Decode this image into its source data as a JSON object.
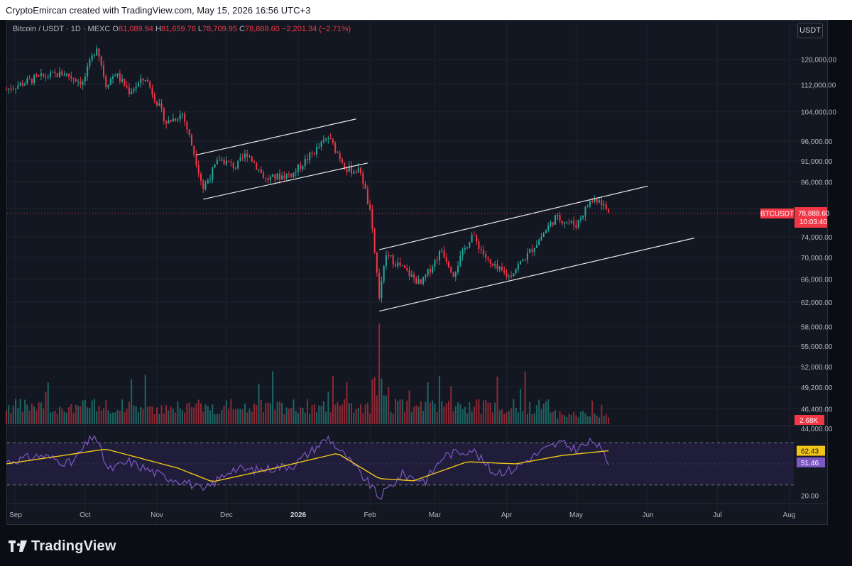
{
  "header": {
    "attribution": "CryptoEmircan created with TradingView.com, May 15, 2026 16:56 UTC+3"
  },
  "legend": {
    "symbol": "Bitcoin / USDT · 1D · MEXC",
    "o_label": "O",
    "o_value": "81,089.94",
    "h_label": "H",
    "h_value": "81,659.76",
    "l_label": "L",
    "l_value": "78,709.95",
    "c_label": "C",
    "c_value": "78,888.60",
    "change": "−2,201.34 (−2.71%)"
  },
  "currency_button": "USDT",
  "footer": {
    "brand": "TradingView",
    "logo_icon": "tradingview-logo-icon"
  },
  "colors": {
    "bull": "#26a69a",
    "bear": "#f23645",
    "rsi": "#7e57c2",
    "rsi_ma": "#f0c419",
    "rsi_band": "#1f1d3a",
    "grid": "#1e222d",
    "channel": "#e8e8e8"
  },
  "chart_data": {
    "type": "candlestick",
    "price_axis": {
      "scale": "log",
      "range": [
        44500,
        128000
      ],
      "ticks": [
        "120,000.00",
        "112,000.00",
        "104,000.00",
        "96,000.00",
        "91,000.00",
        "86,000.00",
        "80,000.00",
        "74,000.00",
        "70,000.00",
        "66,000.00",
        "62,000.00",
        "58,000.00",
        "55,000.00",
        "52,000.00",
        "49,200.00",
        "46,400.00",
        "44,000.00"
      ]
    },
    "time_axis": {
      "range": [
        "2025-08-28",
        "2026-08-03"
      ],
      "ticks": [
        {
          "date": "2025-09-01",
          "label": "Sep"
        },
        {
          "date": "2025-10-01",
          "label": "Oct"
        },
        {
          "date": "2025-11-01",
          "label": "Nov"
        },
        {
          "date": "2025-12-01",
          "label": "Dec"
        },
        {
          "date": "2026-01-01",
          "label": "2026"
        },
        {
          "date": "2026-02-01",
          "label": "Feb"
        },
        {
          "date": "2026-03-01",
          "label": "Mar"
        },
        {
          "date": "2026-04-01",
          "label": "Apr"
        },
        {
          "date": "2026-05-01",
          "label": "May"
        },
        {
          "date": "2026-06-01",
          "label": "Jun"
        },
        {
          "date": "2026-07-01",
          "label": "Jul"
        },
        {
          "date": "2026-08-01",
          "label": "Aug"
        }
      ]
    },
    "price_path": [
      {
        "date": "2025-08-28",
        "price": 110500
      },
      {
        "date": "2025-09-10",
        "price": 114000
      },
      {
        "date": "2025-09-22",
        "price": 115500
      },
      {
        "date": "2025-09-30",
        "price": 112500
      },
      {
        "date": "2025-10-06",
        "price": 124500
      },
      {
        "date": "2025-10-10",
        "price": 112000
      },
      {
        "date": "2025-10-14",
        "price": 115500
      },
      {
        "date": "2025-10-20",
        "price": 110000
      },
      {
        "date": "2025-10-27",
        "price": 114000
      },
      {
        "date": "2025-11-05",
        "price": 101000
      },
      {
        "date": "2025-11-12",
        "price": 103500
      },
      {
        "date": "2025-11-17",
        "price": 93000
      },
      {
        "date": "2025-11-21",
        "price": 84500
      },
      {
        "date": "2025-11-28",
        "price": 91500
      },
      {
        "date": "2025-12-05",
        "price": 89500
      },
      {
        "date": "2025-12-10",
        "price": 93000
      },
      {
        "date": "2025-12-18",
        "price": 86500
      },
      {
        "date": "2025-12-30",
        "price": 88000
      },
      {
        "date": "2026-01-14",
        "price": 97000
      },
      {
        "date": "2026-01-22",
        "price": 89000
      },
      {
        "date": "2026-01-28",
        "price": 88500
      },
      {
        "date": "2026-02-01",
        "price": 79000
      },
      {
        "date": "2026-02-05",
        "price": 63000
      },
      {
        "date": "2026-02-08",
        "price": 70500
      },
      {
        "date": "2026-02-15",
        "price": 68000
      },
      {
        "date": "2026-02-23",
        "price": 65000
      },
      {
        "date": "2026-03-04",
        "price": 71500
      },
      {
        "date": "2026-03-09",
        "price": 67000
      },
      {
        "date": "2026-03-17",
        "price": 74500
      },
      {
        "date": "2026-03-25",
        "price": 68500
      },
      {
        "date": "2026-04-02",
        "price": 66500
      },
      {
        "date": "2026-04-10",
        "price": 70500
      },
      {
        "date": "2026-04-15",
        "price": 73500
      },
      {
        "date": "2026-04-22",
        "price": 78000
      },
      {
        "date": "2026-05-01",
        "price": 76500
      },
      {
        "date": "2026-05-07",
        "price": 81500
      },
      {
        "date": "2026-05-11",
        "price": 82200
      },
      {
        "date": "2026-05-15",
        "price": 78888
      }
    ],
    "channels": [
      {
        "name": "channel-1-upper",
        "start": {
          "date": "2025-11-18",
          "price": 92500
        },
        "end": {
          "date": "2026-01-26",
          "price": 102000
        }
      },
      {
        "name": "channel-1-lower",
        "start": {
          "date": "2025-11-21",
          "price": 82000
        },
        "end": {
          "date": "2026-01-31",
          "price": 90500
        }
      },
      {
        "name": "channel-2-upper",
        "start": {
          "date": "2026-02-05",
          "price": 71500
        },
        "end": {
          "date": "2026-06-01",
          "price": 85000
        }
      },
      {
        "name": "channel-2-lower",
        "start": {
          "date": "2026-02-05",
          "price": 60500
        },
        "end": {
          "date": "2026-06-21",
          "price": 73800
        }
      }
    ],
    "last_price": {
      "symbol": "BTCUSDT",
      "value": "78,888.60",
      "countdown": "10:03:40"
    },
    "volume": {
      "last_label": "2.68K",
      "spike_date": "2026-02-05"
    },
    "rsi": {
      "upper_band": 70,
      "lower_band": 30,
      "range": [
        15,
        85
      ],
      "value": 51.46,
      "value_label": "51.46",
      "ma_value": 62.43,
      "ma_label": "62.43",
      "tick": "20.00",
      "path": [
        {
          "date": "2025-08-28",
          "rsi": 52
        },
        {
          "date": "2025-09-12",
          "rsi": 58
        },
        {
          "date": "2025-09-25",
          "rsi": 50
        },
        {
          "date": "2025-10-05",
          "rsi": 78
        },
        {
          "date": "2025-10-11",
          "rsi": 44
        },
        {
          "date": "2025-10-20",
          "rsi": 52
        },
        {
          "date": "2025-11-04",
          "rsi": 38
        },
        {
          "date": "2025-11-14",
          "rsi": 33
        },
        {
          "date": "2025-11-21",
          "rsi": 24
        },
        {
          "date": "2025-12-03",
          "rsi": 45
        },
        {
          "date": "2025-12-15",
          "rsi": 44
        },
        {
          "date": "2025-12-30",
          "rsi": 49
        },
        {
          "date": "2026-01-14",
          "rsi": 75
        },
        {
          "date": "2026-01-25",
          "rsi": 48
        },
        {
          "date": "2026-02-01",
          "rsi": 30
        },
        {
          "date": "2026-02-05",
          "rsi": 18
        },
        {
          "date": "2026-02-15",
          "rsi": 40
        },
        {
          "date": "2026-02-25",
          "rsi": 34
        },
        {
          "date": "2026-03-05",
          "rsi": 58
        },
        {
          "date": "2026-03-17",
          "rsi": 64
        },
        {
          "date": "2026-03-26",
          "rsi": 42
        },
        {
          "date": "2026-04-03",
          "rsi": 44
        },
        {
          "date": "2026-04-16",
          "rsi": 62
        },
        {
          "date": "2026-04-24",
          "rsi": 70
        },
        {
          "date": "2026-05-01",
          "rsi": 64
        },
        {
          "date": "2026-05-09",
          "rsi": 72
        },
        {
          "date": "2026-05-15",
          "rsi": 51.46
        }
      ],
      "ma_path": [
        {
          "date": "2025-08-28",
          "rsi": 50
        },
        {
          "date": "2025-10-10",
          "rsi": 64
        },
        {
          "date": "2025-11-10",
          "rsi": 46
        },
        {
          "date": "2025-11-25",
          "rsi": 33
        },
        {
          "date": "2025-12-20",
          "rsi": 45
        },
        {
          "date": "2026-01-18",
          "rsi": 60
        },
        {
          "date": "2026-02-05",
          "rsi": 36
        },
        {
          "date": "2026-02-20",
          "rsi": 34
        },
        {
          "date": "2026-03-15",
          "rsi": 52
        },
        {
          "date": "2026-04-05",
          "rsi": 50
        },
        {
          "date": "2026-04-25",
          "rsi": 58
        },
        {
          "date": "2026-05-15",
          "rsi": 62.43
        }
      ]
    }
  }
}
